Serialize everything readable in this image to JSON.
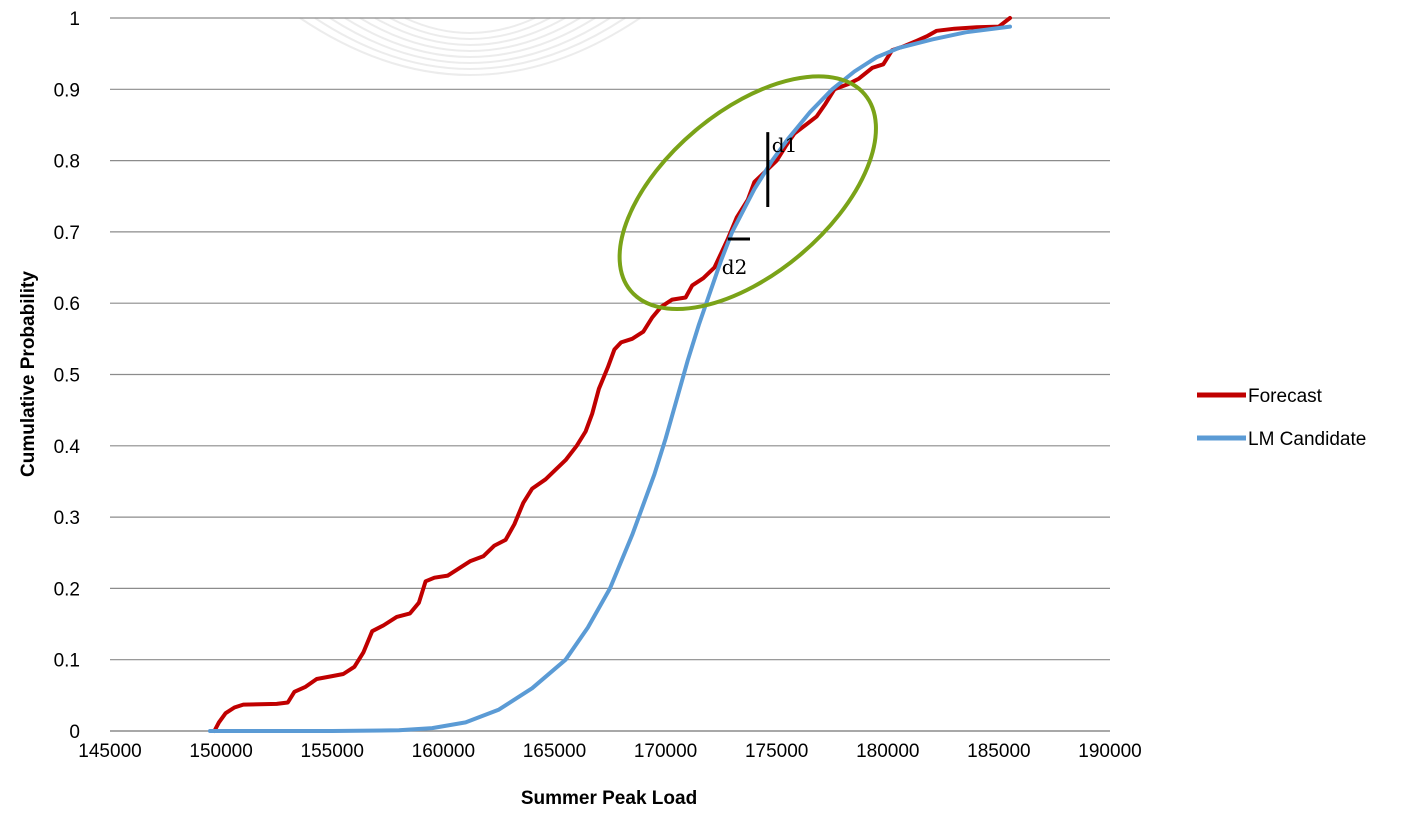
{
  "chart_data": {
    "type": "line",
    "xlabel": "Summer Peak Load",
    "ylabel": "Cumulative Probability",
    "xlim": [
      145000,
      190000
    ],
    "ylim": [
      0,
      1
    ],
    "x_ticks": [
      "145000",
      "150000",
      "155000",
      "160000",
      "165000",
      "170000",
      "175000",
      "180000",
      "185000",
      "190000"
    ],
    "y_ticks": [
      "0",
      "0.1",
      "0.2",
      "0.3",
      "0.4",
      "0.5",
      "0.6",
      "0.7",
      "0.8",
      "0.9",
      "1"
    ],
    "grid": "horizontal",
    "legend_position": "right",
    "series": [
      {
        "name": "Forecast",
        "color": "#c00000",
        "points": [
          [
            149700,
            0
          ],
          [
            149900,
            0.012
          ],
          [
            150200,
            0.025
          ],
          [
            150600,
            0.033
          ],
          [
            151000,
            0.037
          ],
          [
            152500,
            0.038
          ],
          [
            153000,
            0.04
          ],
          [
            153300,
            0.055
          ],
          [
            153800,
            0.062
          ],
          [
            154300,
            0.073
          ],
          [
            155000,
            0.077
          ],
          [
            155500,
            0.08
          ],
          [
            156000,
            0.09
          ],
          [
            156400,
            0.11
          ],
          [
            156800,
            0.14
          ],
          [
            157300,
            0.148
          ],
          [
            157900,
            0.16
          ],
          [
            158500,
            0.165
          ],
          [
            158900,
            0.18
          ],
          [
            159200,
            0.21
          ],
          [
            159600,
            0.215
          ],
          [
            160200,
            0.218
          ],
          [
            160700,
            0.228
          ],
          [
            161200,
            0.238
          ],
          [
            161800,
            0.245
          ],
          [
            162300,
            0.26
          ],
          [
            162800,
            0.268
          ],
          [
            163200,
            0.29
          ],
          [
            163600,
            0.32
          ],
          [
            164000,
            0.34
          ],
          [
            164600,
            0.353
          ],
          [
            165000,
            0.365
          ],
          [
            165500,
            0.38
          ],
          [
            166000,
            0.4
          ],
          [
            166400,
            0.42
          ],
          [
            166700,
            0.445
          ],
          [
            167000,
            0.48
          ],
          [
            167400,
            0.51
          ],
          [
            167700,
            0.535
          ],
          [
            168000,
            0.545
          ],
          [
            168500,
            0.55
          ],
          [
            169000,
            0.56
          ],
          [
            169400,
            0.58
          ],
          [
            169800,
            0.595
          ],
          [
            170300,
            0.605
          ],
          [
            170900,
            0.608
          ],
          [
            171200,
            0.625
          ],
          [
            171700,
            0.635
          ],
          [
            172200,
            0.65
          ],
          [
            172500,
            0.67
          ],
          [
            172800,
            0.69
          ],
          [
            173200,
            0.72
          ],
          [
            173700,
            0.745
          ],
          [
            174000,
            0.77
          ],
          [
            174500,
            0.785
          ],
          [
            175000,
            0.8
          ],
          [
            175400,
            0.82
          ],
          [
            175800,
            0.838
          ],
          [
            176300,
            0.85
          ],
          [
            176800,
            0.862
          ],
          [
            177200,
            0.88
          ],
          [
            177600,
            0.9
          ],
          [
            178200,
            0.907
          ],
          [
            178700,
            0.915
          ],
          [
            179300,
            0.93
          ],
          [
            179800,
            0.935
          ],
          [
            180200,
            0.955
          ],
          [
            180700,
            0.96
          ],
          [
            181300,
            0.968
          ],
          [
            181800,
            0.975
          ],
          [
            182200,
            0.982
          ],
          [
            183000,
            0.985
          ],
          [
            184000,
            0.987
          ],
          [
            185000,
            0.988
          ],
          [
            185500,
            1.0
          ]
        ]
      },
      {
        "name": "LM Candidate",
        "color": "#5b9bd5",
        "points": [
          [
            149500,
            0
          ],
          [
            155000,
            0
          ],
          [
            158000,
            0.001
          ],
          [
            159500,
            0.004
          ],
          [
            161000,
            0.012
          ],
          [
            162500,
            0.03
          ],
          [
            164000,
            0.06
          ],
          [
            165500,
            0.1
          ],
          [
            166500,
            0.145
          ],
          [
            167500,
            0.2
          ],
          [
            168500,
            0.275
          ],
          [
            169500,
            0.36
          ],
          [
            170000,
            0.41
          ],
          [
            170500,
            0.465
          ],
          [
            171000,
            0.52
          ],
          [
            171500,
            0.57
          ],
          [
            172000,
            0.615
          ],
          [
            172500,
            0.66
          ],
          [
            173000,
            0.7
          ],
          [
            173500,
            0.73
          ],
          [
            174000,
            0.76
          ],
          [
            174800,
            0.8
          ],
          [
            175500,
            0.83
          ],
          [
            176500,
            0.868
          ],
          [
            177500,
            0.9
          ],
          [
            178500,
            0.925
          ],
          [
            179500,
            0.945
          ],
          [
            180500,
            0.958
          ],
          [
            182000,
            0.97
          ],
          [
            183500,
            0.98
          ],
          [
            185500,
            0.988
          ]
        ]
      }
    ],
    "annotations": [
      {
        "label": "d1",
        "type": "vertical",
        "x": 174600,
        "y_from": 0.735,
        "y_to": 0.84
      },
      {
        "label": "d2",
        "type": "horizontal",
        "y": 0.69,
        "x_from": 172800,
        "x_to": 173800
      }
    ],
    "highlight_ellipse": {
      "color": "#7aa318",
      "center": [
        173700,
        0.755
      ],
      "rx_data": 5500,
      "ry_data": 0.19,
      "rotation": -40
    }
  }
}
